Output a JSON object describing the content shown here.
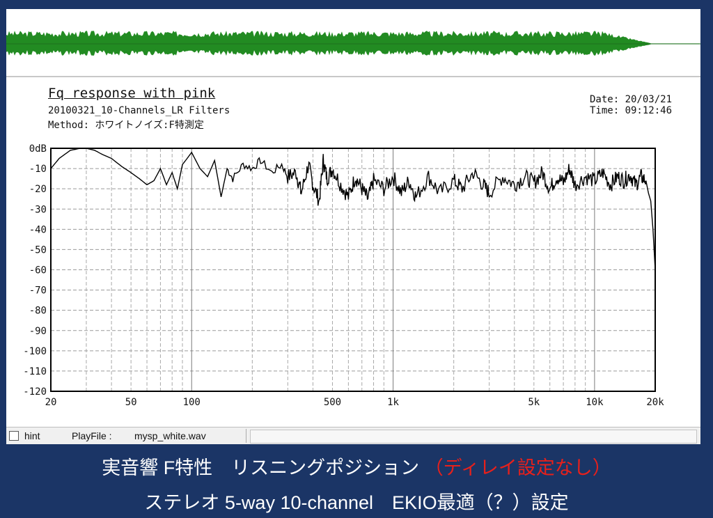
{
  "waveform": {
    "color": "#228b22"
  },
  "chart_data": {
    "type": "line",
    "title": "Fq response with pink",
    "subtitle": "20100321_10-Channels_LR Filters",
    "method": "Method:  ホワイトノイズ:F特測定",
    "date": "Date: 20/03/21",
    "time": "Time: 09:12:46",
    "x_scale": "log",
    "xlim": [
      20,
      20000
    ],
    "ylim": [
      -120,
      0
    ],
    "grid": true,
    "line_color": "#000000",
    "x_ticks": [
      {
        "value": 20,
        "label": "20"
      },
      {
        "value": 50,
        "label": "50"
      },
      {
        "value": 100,
        "label": "100"
      },
      {
        "value": 500,
        "label": "500"
      },
      {
        "value": 1000,
        "label": "1k"
      },
      {
        "value": 5000,
        "label": "5k"
      },
      {
        "value": 10000,
        "label": "10k"
      },
      {
        "value": 20000,
        "label": "20k"
      }
    ],
    "y_ticks": [
      {
        "value": 0,
        "label": "0dB"
      },
      {
        "value": -10,
        "label": "-10"
      },
      {
        "value": -20,
        "label": "-20"
      },
      {
        "value": -30,
        "label": "-30"
      },
      {
        "value": -40,
        "label": "-40"
      },
      {
        "value": -50,
        "label": "-50"
      },
      {
        "value": -60,
        "label": "-60"
      },
      {
        "value": -70,
        "label": "-70"
      },
      {
        "value": -80,
        "label": "-80"
      },
      {
        "value": -90,
        "label": "-90"
      },
      {
        "value": -100,
        "label": "-100"
      },
      {
        "value": -110,
        "label": "-110"
      },
      {
        "value": -120,
        "label": "-120"
      }
    ],
    "series": [
      {
        "x": [
          20,
          22,
          25,
          28,
          30,
          33,
          36,
          40,
          45,
          50,
          55,
          60,
          65,
          70,
          75,
          80,
          85,
          90,
          95,
          100,
          110,
          120,
          130,
          140,
          150,
          160,
          180,
          200,
          220,
          250,
          280,
          300,
          330,
          350,
          380,
          400,
          430,
          450,
          470,
          500,
          550,
          600,
          650,
          700,
          750,
          800,
          900,
          1000,
          1100,
          1200,
          1300,
          1500,
          1700,
          2000,
          2200,
          2500,
          2800,
          3000,
          3500,
          4000,
          4500,
          5000,
          5500,
          6000,
          6500,
          7000,
          7500,
          8000,
          9000,
          10000,
          11000,
          12000,
          13000,
          14000,
          15000,
          16000,
          17000,
          18000,
          18500,
          19000,
          19500,
          20000
        ],
        "y": [
          -10,
          -5,
          -1,
          0,
          0,
          -1,
          -3,
          -5,
          -9,
          -12,
          -15,
          -18,
          -16,
          -10,
          -18,
          -12,
          -20,
          -8,
          -5,
          -2,
          -10,
          -14,
          -6,
          -24,
          -10,
          -15,
          -8,
          -10,
          -6,
          -12,
          -8,
          -14,
          -12,
          -22,
          -8,
          -18,
          -26,
          -6,
          -15,
          -10,
          -18,
          -24,
          -14,
          -20,
          -25,
          -16,
          -20,
          -14,
          -22,
          -16,
          -24,
          -14,
          -22,
          -16,
          -20,
          -12,
          -18,
          -22,
          -14,
          -18,
          -14,
          -17,
          -12,
          -20,
          -14,
          -17,
          -10,
          -18,
          -14,
          -16,
          -12,
          -18,
          -14,
          -16,
          -13,
          -18,
          -14,
          -16,
          -22,
          -26,
          -40,
          -60
        ]
      }
    ]
  },
  "statusbar": {
    "hint_label": "hint",
    "playfile_label": "PlayFile :",
    "playfile_value": "mysp_white.wav"
  },
  "caption": {
    "line1_main": "実音響 F特性　リスニングポジション ",
    "line1_red": "（ディレイ設定なし）",
    "line2": "ステレオ 5-way 10-channel　EKIO最適（？）設定",
    "text_color": "#ffffff",
    "highlight_color": "#e8201b"
  }
}
